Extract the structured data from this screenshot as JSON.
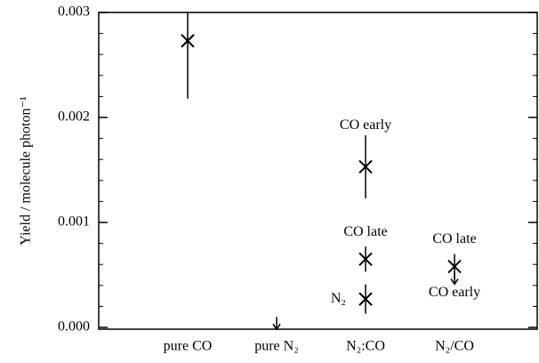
{
  "chart_data": {
    "type": "errorbar",
    "ylabel": "Yield / molecule photon⁻¹",
    "categories": [
      "pure CO",
      "pure N₂",
      "N₂:CO",
      "N₂/CO"
    ],
    "ylim": [
      0,
      0.003
    ],
    "yticks": [
      {
        "value": 0,
        "label": "0.000"
      },
      {
        "value": 0.001,
        "label": "0.001"
      },
      {
        "value": 0.002,
        "label": "0.002"
      },
      {
        "value": 0.003,
        "label": "0.003"
      }
    ],
    "minor_yticks": [
      0.0002,
      0.0004,
      0.0006,
      0.0008,
      0.0012,
      0.0014,
      0.0016,
      0.0018,
      0.0022,
      0.0024,
      0.0026,
      0.0028
    ],
    "color": "#000000",
    "points": [
      {
        "x": "pure CO",
        "value": 0.00273,
        "error": 0.00055
      },
      {
        "x": "pure N₂",
        "upper_limit": 0.0001
      },
      {
        "x": "N₂:CO",
        "label": "CO early",
        "value": 0.00153,
        "error": 0.0003
      },
      {
        "x": "N₂:CO",
        "label": "CO late",
        "value": 0.00065,
        "error": 0.00012
      },
      {
        "x": "N₂:CO",
        "label": "N₂",
        "value": 0.00027,
        "error": 0.00014
      },
      {
        "x": "N₂/CO",
        "label": "CO late",
        "value": 0.00058,
        "error": 0.00012
      },
      {
        "x": "N₂/CO",
        "label": "CO early",
        "upper_limit": 0.00053
      }
    ]
  }
}
